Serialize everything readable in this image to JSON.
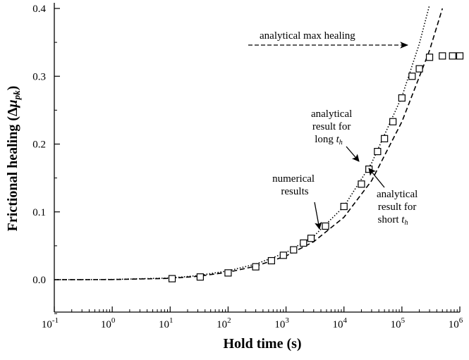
{
  "chart_data": {
    "type": "scatter",
    "xscale": "log",
    "xlim_exponents": [
      -1,
      6
    ],
    "ylim": [
      0.0,
      0.4
    ],
    "xlabel": "Hold time (s)",
    "ylabel": "Frictional healing (Δμ_pk)",
    "ylabel_parts": {
      "main": "Frictional healing (",
      "delta": "Δ",
      "mu": "μ",
      "sub": "pk",
      "close": ")"
    },
    "x_ticks": [
      {
        "base": "10",
        "exp": "-1",
        "value": 0.1
      },
      {
        "base": "10",
        "exp": "0",
        "value": 1
      },
      {
        "base": "10",
        "exp": "1",
        "value": 10
      },
      {
        "base": "10",
        "exp": "2",
        "value": 100
      },
      {
        "base": "10",
        "exp": "3",
        "value": 1000
      },
      {
        "base": "10",
        "exp": "4",
        "value": 10000
      },
      {
        "base": "10",
        "exp": "5",
        "value": 100000
      },
      {
        "base": "10",
        "exp": "6",
        "value": 1000000
      }
    ],
    "y_ticks": [
      "0.0",
      "0.1",
      "0.2",
      "0.3",
      "0.4"
    ],
    "y_tick_values": [
      0.0,
      0.1,
      0.2,
      0.3,
      0.4
    ],
    "series": [
      {
        "name": "numerical results",
        "marker": "open-square",
        "x": [
          10.8,
          33,
          100,
          300,
          560,
          900,
          1350,
          2000,
          2700,
          4800,
          10000,
          20000,
          27000,
          38000,
          50000,
          70000,
          100000,
          150000,
          200000,
          300000,
          500000,
          750000,
          1000000
        ],
        "y": [
          0.0015,
          0.004,
          0.01,
          0.019,
          0.028,
          0.036,
          0.044,
          0.054,
          0.061,
          0.079,
          0.108,
          0.141,
          0.163,
          0.189,
          0.208,
          0.233,
          0.268,
          0.3,
          0.311,
          0.328,
          0.33,
          0.33,
          0.33
        ]
      },
      {
        "name": "analytical result for long t_h",
        "style": "dotted",
        "x": [
          0.1,
          1,
          10,
          30,
          100,
          300,
          1000,
          3000,
          10000,
          30000,
          100000,
          200000,
          300000
        ],
        "y": [
          0.0,
          0.0003,
          0.0025,
          0.006,
          0.013,
          0.023,
          0.04,
          0.064,
          0.108,
          0.172,
          0.27,
          0.348,
          0.405
        ]
      },
      {
        "name": "analytical result for short t_h",
        "style": "dashed",
        "x": [
          0.1,
          1,
          10,
          30,
          100,
          300,
          1000,
          3000,
          10000,
          30000,
          100000,
          300000,
          500000
        ],
        "y": [
          0.0,
          0.0002,
          0.002,
          0.005,
          0.011,
          0.02,
          0.035,
          0.056,
          0.092,
          0.146,
          0.233,
          0.338,
          0.4
        ]
      }
    ],
    "annotations": [
      {
        "key": "max",
        "lines": [
          "analytical max healing"
        ],
        "arrow": "dashed"
      },
      {
        "key": "long",
        "lines": [
          "analytical",
          "result for",
          "long "
        ],
        "italic_suffix": "t",
        "italic_sub": "h"
      },
      {
        "key": "numerical",
        "lines": [
          "numerical",
          "results"
        ]
      },
      {
        "key": "short",
        "lines": [
          "analytical",
          "result for",
          "short "
        ],
        "italic_suffix": "t",
        "italic_sub": "h"
      }
    ]
  }
}
